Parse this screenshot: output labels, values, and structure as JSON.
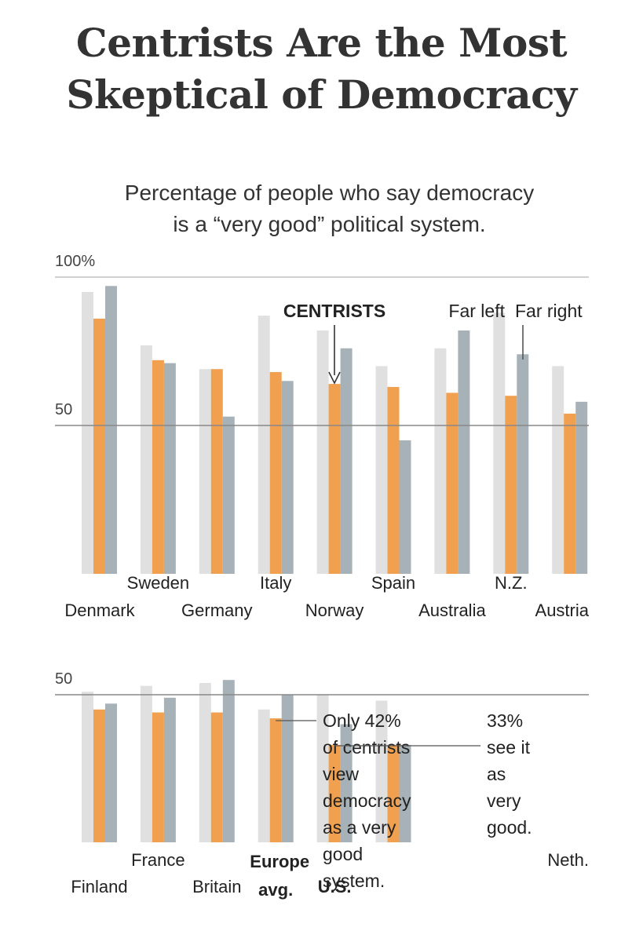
{
  "title": [
    "Centrists Are the Most",
    "Skeptical of Democracy"
  ],
  "subtitle": [
    "Percentage of people who say democracy",
    "is a “very good” political system."
  ],
  "colors": {
    "far_left": "#e0e0e0",
    "centrists": "#f0a04e",
    "far_right": "#a7b2b8"
  },
  "legend": {
    "centrists": "CENTRISTS",
    "far_left": "Far left",
    "far_right": "Far right"
  },
  "chart_data": [
    {
      "type": "bar",
      "ylim": [
        0,
        100
      ],
      "ticks": [
        {
          "value": 100,
          "label": "100%"
        },
        {
          "value": 50,
          "label": "50"
        }
      ],
      "categories": [
        "Denmark",
        "Sweden",
        "Germany",
        "Italy",
        "Norway",
        "Spain",
        "Australia",
        "N.Z.",
        "Austria"
      ],
      "series": [
        {
          "name": "Far left",
          "key": "far_left",
          "values": [
            95,
            77,
            69,
            87,
            82,
            70,
            76,
            88,
            70
          ]
        },
        {
          "name": "CENTRISTS",
          "key": "centrists",
          "values": [
            86,
            72,
            69,
            68,
            64,
            63,
            61,
            60,
            54
          ]
        },
        {
          "name": "Far right",
          "key": "far_right",
          "values": [
            97,
            71,
            53,
            65,
            76,
            45,
            82,
            74,
            58
          ]
        }
      ]
    },
    {
      "type": "bar",
      "ylim": [
        0,
        100
      ],
      "ticks": [
        {
          "value": 50,
          "label": "50"
        }
      ],
      "categories": [
        "Finland",
        "France",
        "Britain",
        "Europe avg.",
        "U.S.",
        "Neth."
      ],
      "series": [
        {
          "name": "Far left",
          "key": "far_left",
          "values": [
            51,
            53,
            54,
            45,
            50,
            48
          ]
        },
        {
          "name": "CENTRISTS",
          "key": "centrists",
          "values": [
            45,
            44,
            44,
            42,
            33,
            33
          ]
        },
        {
          "name": "Far right",
          "key": "far_right",
          "values": [
            47,
            49,
            55,
            50,
            40,
            33
          ]
        }
      ],
      "annotations": [
        {
          "target": "Europe avg.",
          "text": [
            "Only 42%",
            "of centrists",
            "view",
            "democracy",
            "as a very",
            "good",
            "system."
          ]
        },
        {
          "target": "U.S.",
          "text": [
            "33%",
            "see it",
            "as",
            "very",
            "good."
          ]
        }
      ]
    }
  ]
}
